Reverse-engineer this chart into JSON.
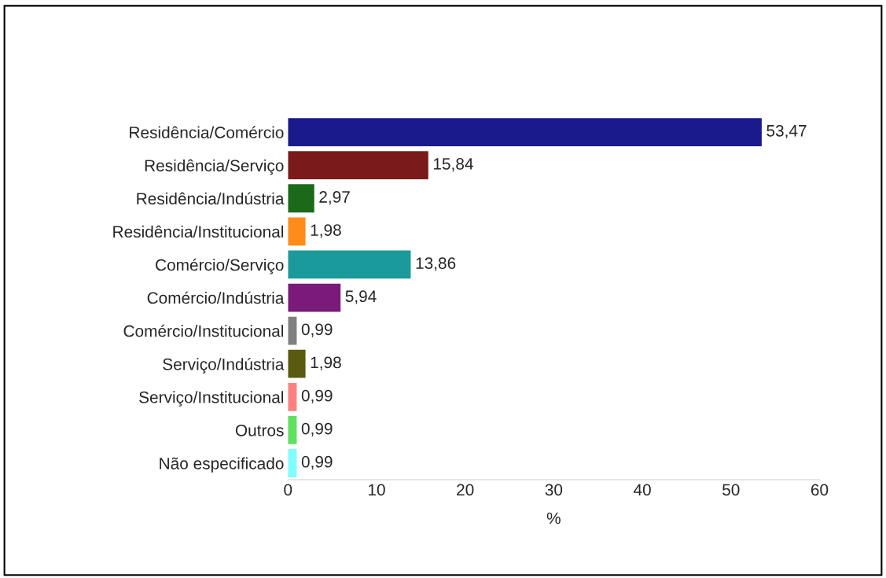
{
  "chart_data": {
    "type": "bar",
    "orientation": "horizontal",
    "xlabel": "%",
    "categories": [
      "Residência/Comércio",
      "Residência/Serviço",
      "Residência/Indústria",
      "Residência/Institucional",
      "Comércio/Serviço",
      "Comércio/Indústria",
      "Comércio/Institucional",
      "Serviço/Indústria",
      "Serviço/Institucional",
      "Outros",
      "Não especificado"
    ],
    "values": [
      53.47,
      15.84,
      2.97,
      1.98,
      13.86,
      5.94,
      0.99,
      1.98,
      0.99,
      0.99,
      0.99
    ],
    "value_labels": [
      "53,47",
      "15,84",
      "2,97",
      "1,98",
      "13,86",
      "5,94",
      "0,99",
      "1,98",
      "0,99",
      "0,99",
      "0,99"
    ],
    "colors": [
      "#1a1a8c",
      "#7a1a1a",
      "#1a6a1a",
      "#ff8c1a",
      "#1a9a9a",
      "#7a1a7a",
      "#808080",
      "#5a5a10",
      "#ff8080",
      "#60e060",
      "#80ffff"
    ],
    "xlim": [
      0,
      60
    ],
    "xticks": [
      0,
      10,
      20,
      30,
      40,
      50,
      60
    ]
  }
}
